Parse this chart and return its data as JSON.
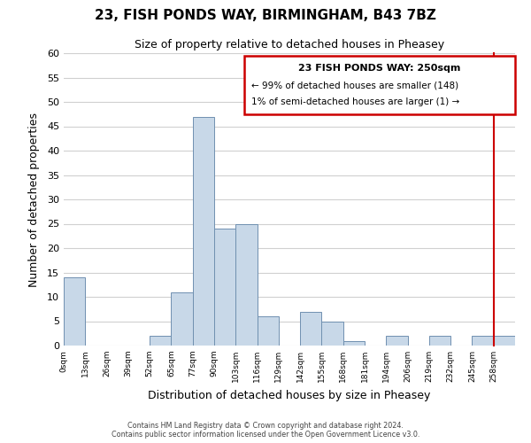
{
  "title": "23, FISH PONDS WAY, BIRMINGHAM, B43 7BZ",
  "subtitle": "Size of property relative to detached houses in Pheasey",
  "xlabel": "Distribution of detached houses by size in Pheasey",
  "ylabel": "Number of detached properties",
  "footer_line1": "Contains HM Land Registry data © Crown copyright and database right 2024.",
  "footer_line2": "Contains public sector information licensed under the Open Government Licence v3.0.",
  "bin_labels": [
    "0sqm",
    "13sqm",
    "26sqm",
    "39sqm",
    "52sqm",
    "65sqm",
    "77sqm",
    "90sqm",
    "103sqm",
    "116sqm",
    "129sqm",
    "142sqm",
    "155sqm",
    "168sqm",
    "181sqm",
    "194sqm",
    "206sqm",
    "219sqm",
    "232sqm",
    "245sqm",
    "258sqm"
  ],
  "bar_heights": [
    14,
    0,
    0,
    0,
    2,
    11,
    47,
    24,
    25,
    6,
    0,
    7,
    5,
    1,
    0,
    2,
    0,
    2,
    0,
    2,
    2
  ],
  "bar_color": "#c8d8e8",
  "bar_edge_color": "#7090b0",
  "grid_color": "#d0d0d0",
  "ylim": [
    0,
    60
  ],
  "yticks": [
    0,
    5,
    10,
    15,
    20,
    25,
    30,
    35,
    40,
    45,
    50,
    55,
    60
  ],
  "property_size": "250sqm",
  "legend_title": "23 FISH PONDS WAY: 250sqm",
  "legend_line1": "← 99% of detached houses are smaller (148)",
  "legend_line2": "1% of semi-detached houses are larger (1) →",
  "legend_box_color": "#cc0000",
  "annotation_line_color": "#cc0000"
}
